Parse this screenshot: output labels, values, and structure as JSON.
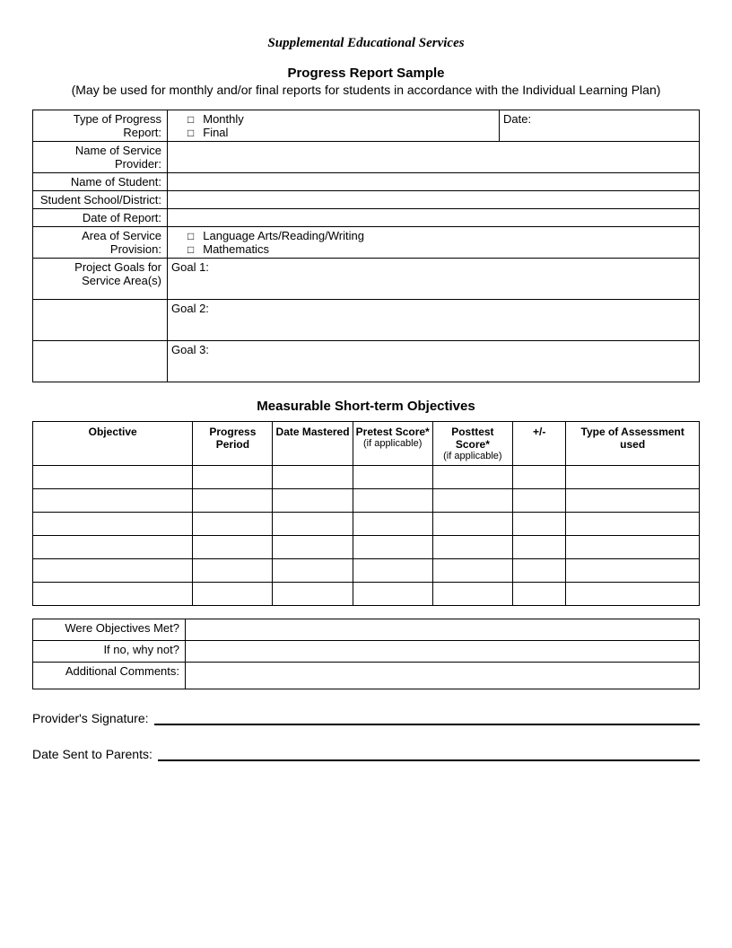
{
  "doc_title": "Supplemental Educational Services",
  "report_title": "Progress Report Sample",
  "subtitle": "(May be used for monthly and/or final reports for students in accordance with the Individual Learning Plan)",
  "info": {
    "type_label": "Type of Progress Report:",
    "type_options": [
      "Monthly",
      "Final"
    ],
    "date_label": "Date:",
    "provider_label": "Name of Service Provider:",
    "student_label": "Name of Student:",
    "school_label": "Student School/District:",
    "report_date_label": "Date of Report:",
    "area_label": "Area of Service Provision:",
    "area_options": [
      "Language Arts/Reading/Writing",
      "Mathematics"
    ],
    "goals_label": "Project Goals for Service Area(s)",
    "goal1": "Goal 1:",
    "goal2": "Goal 2:",
    "goal3": "Goal 3:"
  },
  "objectives_heading": "Measurable Short-term Objectives",
  "obj_columns": {
    "c1": "Objective",
    "c2": "Progress Period",
    "c3": "Date Mastered",
    "c4": "Pretest Score*",
    "c4_sub": "(if applicable)",
    "c5": "Posttest Score*",
    "c5_sub": "(if applicable)",
    "c6": "+/-",
    "c7": "Type of Assessment used"
  },
  "obj_row_count": 6,
  "bottom": {
    "q1": "Were Objectives Met?",
    "q2": "If no, why not?",
    "q3": "Additional Comments:"
  },
  "sig": {
    "provider": "Provider's Signature:",
    "date_sent": "Date Sent to Parents:"
  },
  "checkbox_glyph": "□",
  "colors": {
    "text": "#000000",
    "bg": "#ffffff",
    "border": "#000000"
  }
}
